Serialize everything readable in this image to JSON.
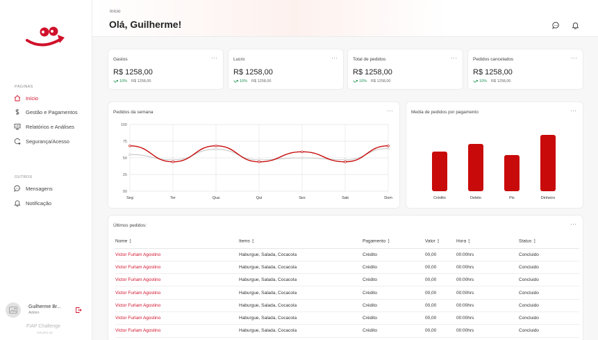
{
  "sidebar": {
    "section_pages": "PÁGINAS",
    "section_others": "OUTROS",
    "items": [
      {
        "label": "Início",
        "icon": "home-icon"
      },
      {
        "label": "Gestão e Pagamentos",
        "icon": "dollar-icon"
      },
      {
        "label": "Relatórios e Análises",
        "icon": "report-icon"
      },
      {
        "label": "Segurança/Acesso",
        "icon": "security-icon"
      }
    ],
    "others": [
      {
        "label": "Mensagens",
        "icon": "chat-icon"
      },
      {
        "label": "Notificação",
        "icon": "bell-icon"
      }
    ],
    "user": {
      "name": "Guilherme Br...",
      "role": "Admin"
    },
    "brand": "FIAP Challenge",
    "brand_sub": "GRUPO 50"
  },
  "header": {
    "breadcrumb": "Início",
    "greeting": "Olá, Guilherme!"
  },
  "stats": [
    {
      "title": "Gastos",
      "value": "R$ 1258,00",
      "trend": "10%",
      "prev": "R$ 1258,00"
    },
    {
      "title": "Lucro",
      "value": "R$ 1258,00",
      "trend": "10%",
      "prev": "R$ 1258,00"
    },
    {
      "title": "Total de pedidos",
      "value": "R$ 1258,00",
      "trend": "10%",
      "prev": "R$ 1258,00"
    },
    {
      "title": "Pedidos cancelados",
      "value": "R$ 1258,00",
      "trend": "10%",
      "prev": "R$ 1258,00"
    }
  ],
  "more_label": "···",
  "colors": {
    "accent": "#d0112b",
    "bar": "#c80a0a",
    "trend": "#1a8f4e",
    "grey_line": "#c8c8c8"
  },
  "chart_data": [
    {
      "type": "line",
      "title": "Pedidos da semana",
      "categories": [
        "Seg",
        "Ter",
        "Qua",
        "Qui",
        "Sex",
        "Sab",
        "Dom"
      ],
      "y_ticks": [
        "100",
        "75",
        "50",
        "25",
        "00"
      ],
      "ylim": [
        0,
        100
      ],
      "grid": true,
      "series": [
        {
          "values": [
            68,
            44,
            68,
            44,
            59,
            44,
            68
          ],
          "color": "#c80a0a"
        },
        {
          "values": [
            55,
            47,
            63,
            47,
            50,
            47,
            64
          ],
          "color": "#c8c8c8"
        }
      ]
    },
    {
      "type": "bar",
      "title": "Media de pedidos por pagamento",
      "categories": [
        "Crédito",
        "Debito",
        "Pix",
        "Dinheiro"
      ],
      "values": [
        57,
        68,
        52,
        81
      ],
      "ylim": [
        0,
        100
      ],
      "grid": false
    }
  ],
  "orders": {
    "title": "Últimos pedidos:",
    "columns": [
      "Nome",
      "Items",
      "Pagamento",
      "Valor",
      "Hora",
      "Status"
    ],
    "rows": [
      [
        "Victor Furlam Agostino",
        "Haburgue, Salada, Cocacola",
        "Crédito",
        "00,00",
        "00:00hrs",
        "Concluido"
      ],
      [
        "Victor Furlam Agostino",
        "Haburgue, Salada, Cocacola",
        "Crédito",
        "00,00",
        "00:00hrs",
        "Concluido"
      ],
      [
        "Victor Furlam Agostino",
        "Haburgue, Salada, Cocacola",
        "Crédito",
        "00,00",
        "00:00hrs",
        "Concluido"
      ],
      [
        "Victor Furlam Agostino",
        "Haburgue, Salada, Cocacola",
        "Crédito",
        "00,00",
        "00:00hrs",
        "Concluido"
      ],
      [
        "Victor Furlam Agostino",
        "Haburgue, Salada, Cocacola",
        "Crédito",
        "00,00",
        "00:00hrs",
        "Concluido"
      ],
      [
        "Victor Furlam Agostino",
        "Haburgue, Salada, Cocacola",
        "Crédito",
        "00,00",
        "00:00hrs",
        "Concluido"
      ],
      [
        "Victor Furlam Agostino",
        "Haburgue, Salada, Cocacola",
        "Crédito",
        "00,00",
        "00:00hrs",
        "Concluido"
      ]
    ]
  }
}
